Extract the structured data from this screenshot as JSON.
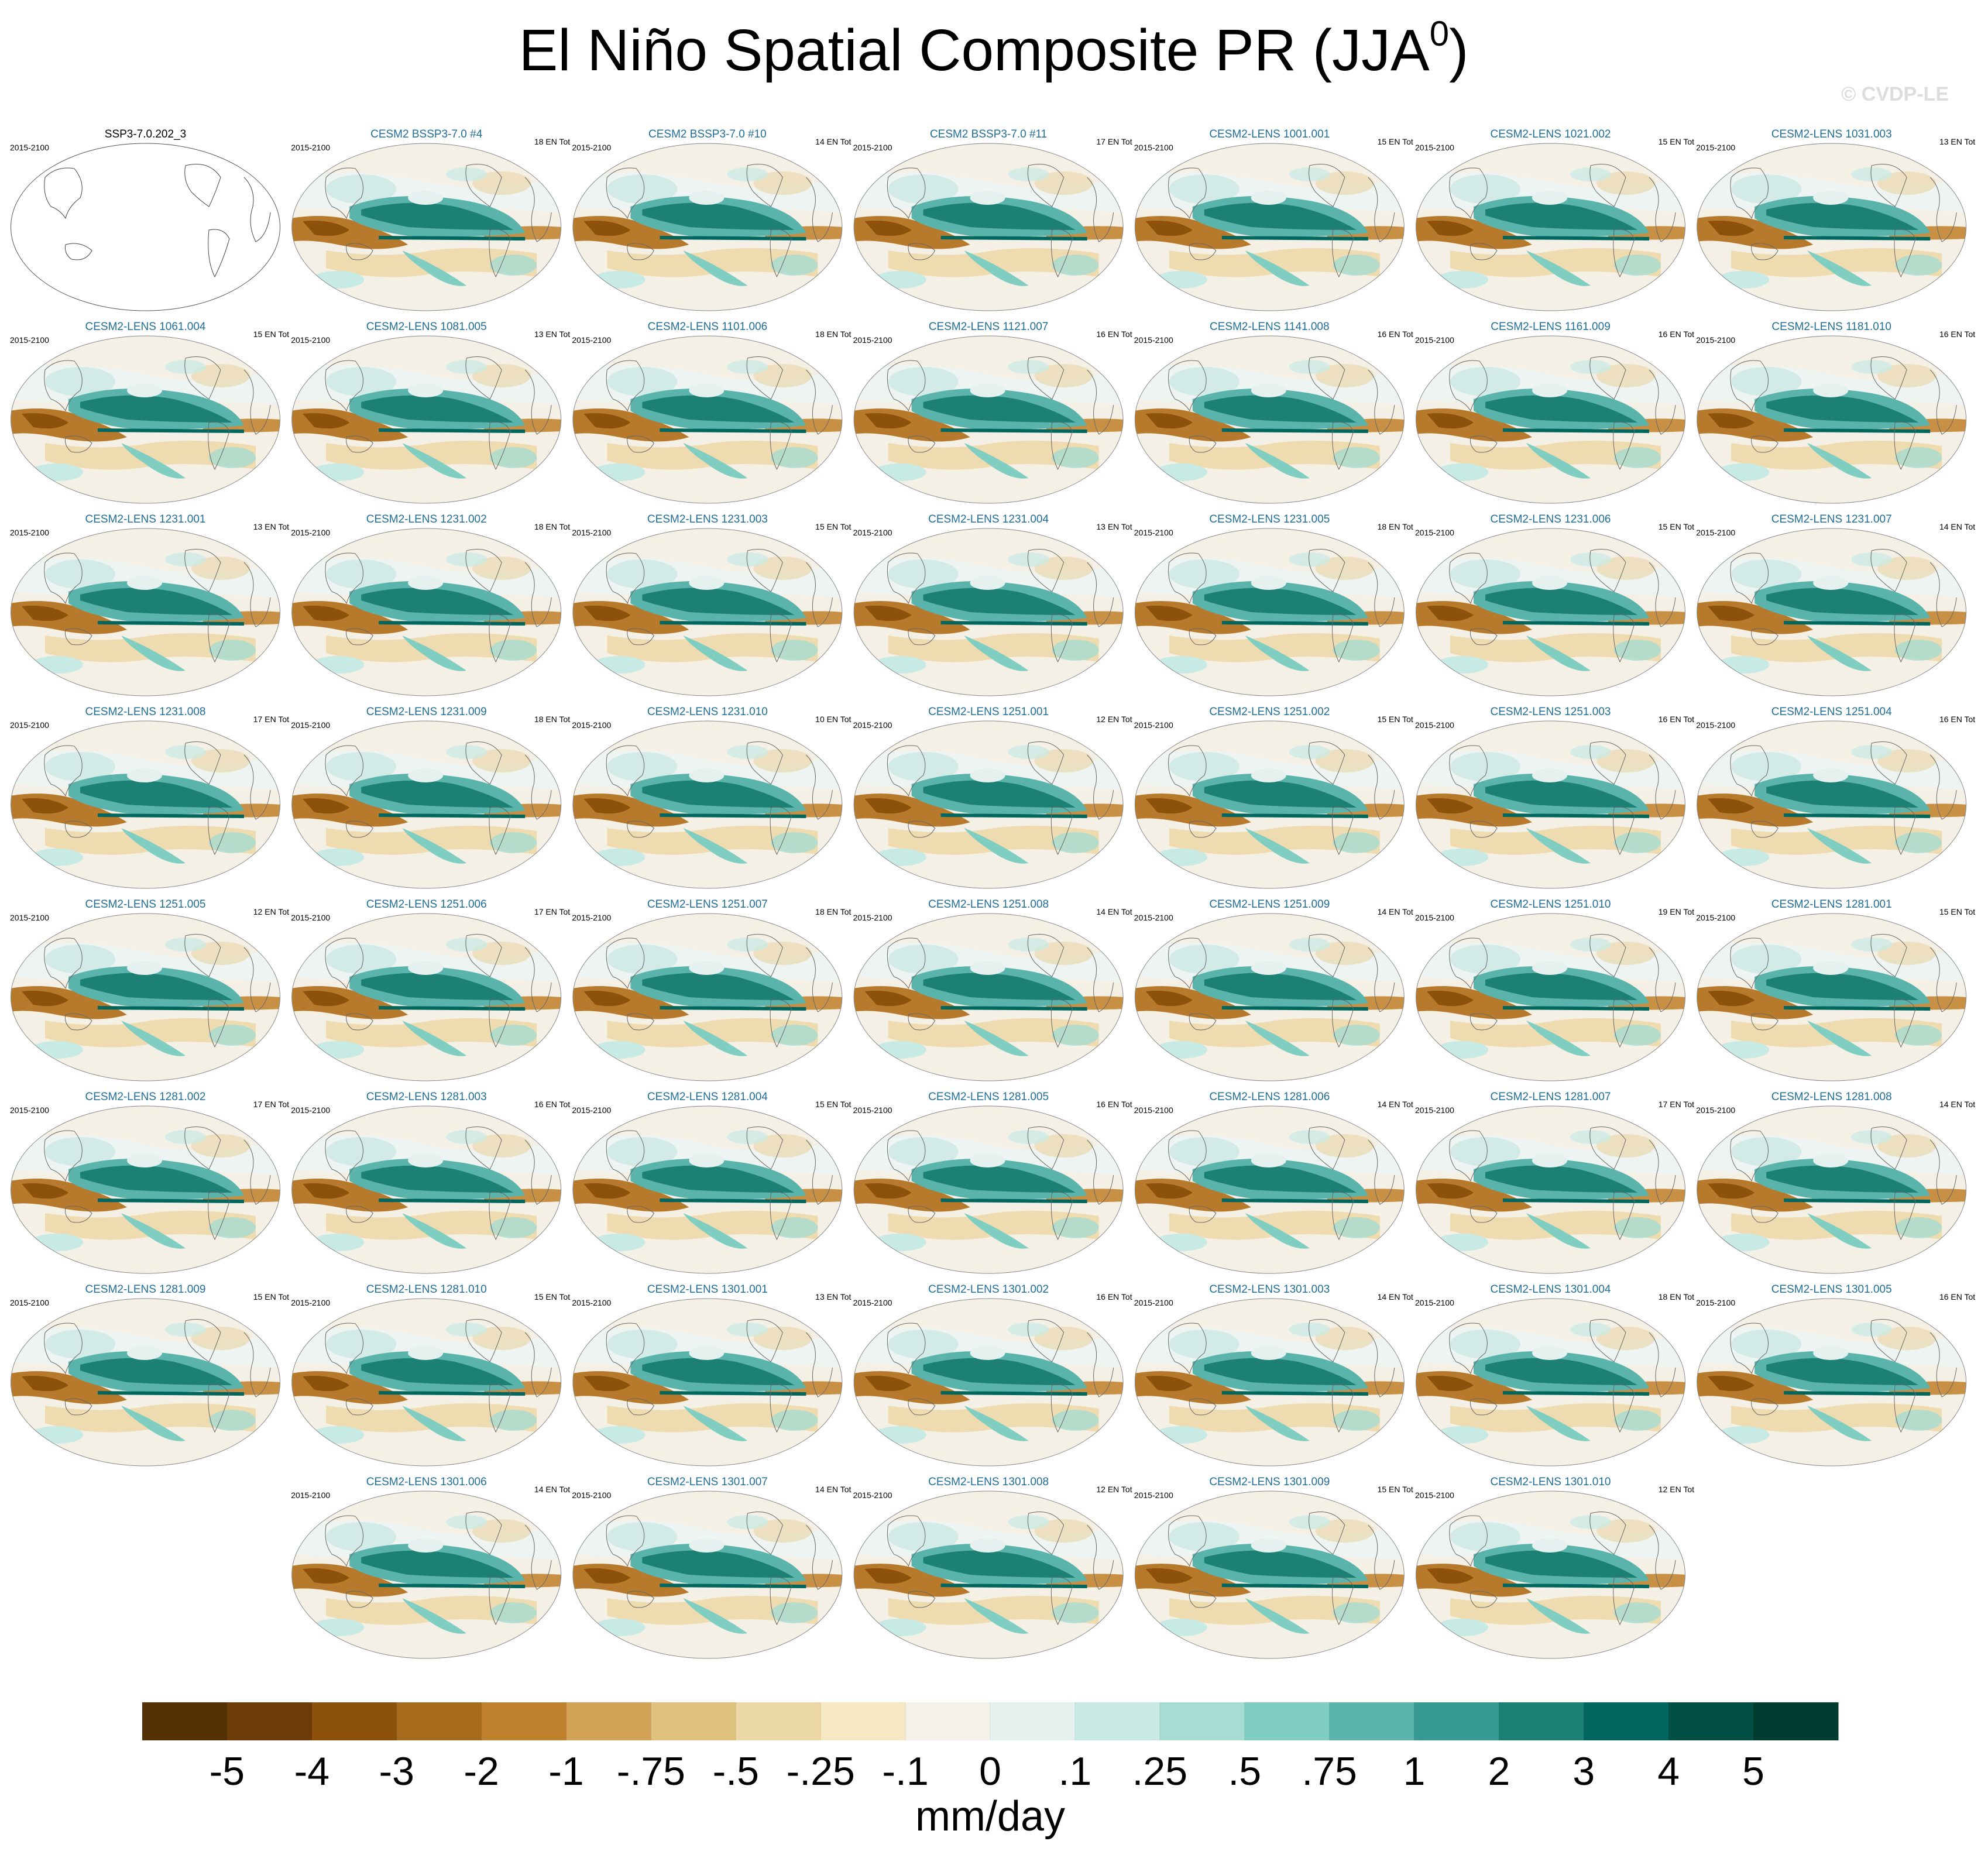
{
  "header": {
    "title": {
      "text": "El Niño Spatial Composite PR (JJA",
      "superscript": "0",
      "closing": ")"
    },
    "watermark": "© CVDP-LE"
  },
  "panels": [
    {
      "period": "2015-2100",
      "title": "SSP3-7.0.202_3"
    },
    {
      "period": "2015-2100",
      "title": "CESM2 BSSP3-7.0 #4",
      "count": "18 EN Tot"
    },
    {
      "period": "2015-2100",
      "title": "CESM2 BSSP3-7.0 #10",
      "count": "14 EN Tot"
    },
    {
      "period": "2015-2100",
      "title": "CESM2 BSSP3-7.0 #11",
      "count": "17 EN Tot"
    },
    {
      "period": "2015-2100",
      "title": "CESM2-LENS 1001.001",
      "count": "15 EN Tot"
    },
    {
      "period": "2015-2100",
      "title": "CESM2-LENS 1021.002",
      "count": "15 EN Tot"
    },
    {
      "period": "2015-2100",
      "title": "CESM2-LENS 1031.003",
      "count": "13 EN Tot"
    },
    {
      "period": "2015-2100",
      "title": "CESM2-LENS 1061.004",
      "count": "15 EN Tot"
    },
    {
      "period": "2015-2100",
      "title": "CESM2-LENS 1081.005",
      "count": "13 EN Tot"
    },
    {
      "period": "2015-2100",
      "title": "CESM2-LENS 1101.006",
      "count": "18 EN Tot"
    },
    {
      "period": "2015-2100",
      "title": "CESM2-LENS 1121.007",
      "count": "16 EN Tot"
    },
    {
      "period": "2015-2100",
      "title": "CESM2-LENS 1141.008",
      "count": "16 EN Tot"
    },
    {
      "period": "2015-2100",
      "title": "CESM2-LENS 1161.009",
      "count": "16 EN Tot"
    },
    {
      "period": "2015-2100",
      "title": "CESM2-LENS 1181.010",
      "count": "16 EN Tot"
    },
    {
      "period": "2015-2100",
      "title": "CESM2-LENS 1231.001",
      "count": "13 EN Tot"
    },
    {
      "period": "2015-2100",
      "title": "CESM2-LENS 1231.002",
      "count": "18 EN Tot"
    },
    {
      "period": "2015-2100",
      "title": "CESM2-LENS 1231.003",
      "count": "15 EN Tot"
    },
    {
      "period": "2015-2100",
      "title": "CESM2-LENS 1231.004",
      "count": "13 EN Tot"
    },
    {
      "period": "2015-2100",
      "title": "CESM2-LENS 1231.005",
      "count": "18 EN Tot"
    },
    {
      "period": "2015-2100",
      "title": "CESM2-LENS 1231.006",
      "count": "15 EN Tot"
    },
    {
      "period": "2015-2100",
      "title": "CESM2-LENS 1231.007",
      "count": "14 EN Tot"
    },
    {
      "period": "2015-2100",
      "title": "CESM2-LENS 1231.008",
      "count": "17 EN Tot"
    },
    {
      "period": "2015-2100",
      "title": "CESM2-LENS 1231.009",
      "count": "18 EN Tot"
    },
    {
      "period": "2015-2100",
      "title": "CESM2-LENS 1231.010",
      "count": "10 EN Tot"
    },
    {
      "period": "2015-2100",
      "title": "CESM2-LENS 1251.001",
      "count": "12 EN Tot"
    },
    {
      "period": "2015-2100",
      "title": "CESM2-LENS 1251.002",
      "count": "15 EN Tot"
    },
    {
      "period": "2015-2100",
      "title": "CESM2-LENS 1251.003",
      "count": "16 EN Tot"
    },
    {
      "period": "2015-2100",
      "title": "CESM2-LENS 1251.004",
      "count": "16 EN Tot"
    },
    {
      "period": "2015-2100",
      "title": "CESM2-LENS 1251.005",
      "count": "12 EN Tot"
    },
    {
      "period": "2015-2100",
      "title": "CESM2-LENS 1251.006",
      "count": "17 EN Tot"
    },
    {
      "period": "2015-2100",
      "title": "CESM2-LENS 1251.007",
      "count": "18 EN Tot"
    },
    {
      "period": "2015-2100",
      "title": "CESM2-LENS 1251.008",
      "count": "14 EN Tot"
    },
    {
      "period": "2015-2100",
      "title": "CESM2-LENS 1251.009",
      "count": "14 EN Tot"
    },
    {
      "period": "2015-2100",
      "title": "CESM2-LENS 1251.010",
      "count": "19 EN Tot"
    },
    {
      "period": "2015-2100",
      "title": "CESM2-LENS 1281.001",
      "count": "15 EN Tot"
    },
    {
      "period": "2015-2100",
      "title": "CESM2-LENS 1281.002",
      "count": "17 EN Tot"
    },
    {
      "period": "2015-2100",
      "title": "CESM2-LENS 1281.003",
      "count": "16 EN Tot"
    },
    {
      "period": "2015-2100",
      "title": "CESM2-LENS 1281.004",
      "count": "15 EN Tot"
    },
    {
      "period": "2015-2100",
      "title": "CESM2-LENS 1281.005",
      "count": "16 EN Tot"
    },
    {
      "period": "2015-2100",
      "title": "CESM2-LENS 1281.006",
      "count": "14 EN Tot"
    },
    {
      "period": "2015-2100",
      "title": "CESM2-LENS 1281.007",
      "count": "17 EN Tot"
    },
    {
      "period": "2015-2100",
      "title": "CESM2-LENS 1281.008",
      "count": "14 EN Tot"
    },
    {
      "period": "2015-2100",
      "title": "CESM2-LENS 1281.009",
      "count": "15 EN Tot"
    },
    {
      "period": "2015-2100",
      "title": "CESM2-LENS 1281.010",
      "count": "15 EN Tot"
    },
    {
      "period": "2015-2100",
      "title": "CESM2-LENS 1301.001",
      "count": "13 EN Tot"
    },
    {
      "period": "2015-2100",
      "title": "CESM2-LENS 1301.002",
      "count": "16 EN Tot"
    },
    {
      "period": "2015-2100",
      "title": "CESM2-LENS 1301.003",
      "count": "14 EN Tot"
    },
    {
      "period": "2015-2100",
      "title": "CESM2-LENS 1301.004",
      "count": "18 EN Tot"
    },
    {
      "period": "2015-2100",
      "title": "CESM2-LENS 1301.005",
      "count": "16 EN Tot"
    },
    {
      "period": "2015-2100",
      "title": "CESM2-LENS 1301.006",
      "count": "14 EN Tot"
    },
    {
      "period": "2015-2100",
      "title": "CESM2-LENS 1301.007",
      "count": "14 EN Tot"
    },
    {
      "period": "2015-2100",
      "title": "CESM2-LENS 1301.008",
      "count": "12 EN Tot"
    },
    {
      "period": "2015-2100",
      "title": "CESM2-LENS 1301.009",
      "count": "15 EN Tot"
    },
    {
      "period": "2015-2100",
      "title": "CESM2-LENS 1301.010",
      "count": "12 EN Tot"
    }
  ],
  "colorbar": {
    "colors": [
      "#543005",
      "#6e3c09",
      "#8c510a",
      "#a66a1d",
      "#bf812d",
      "#d2a257",
      "#dfc27d",
      "#ecd7a6",
      "#f6e8c3",
      "#f4f1e9",
      "#e4f1ee",
      "#c7eae5",
      "#a6dcd2",
      "#80cdc1",
      "#5ab4ac",
      "#359a90",
      "#1c8075",
      "#01665e",
      "#014f45",
      "#003c30"
    ],
    "ticks": [
      -5,
      -4,
      -3,
      -2,
      -1,
      {
        "value": -0.75,
        "label": "-.75"
      },
      {
        "value": -0.5,
        "label": "-.5"
      },
      {
        "value": -0.25,
        "label": "-.25"
      },
      {
        "value": -0.1,
        "label": "-.1"
      },
      0,
      {
        "value": 0.1,
        "label": ".1"
      },
      {
        "value": 0.25,
        "label": ".25"
      },
      {
        "value": 0.5,
        "label": ".5"
      },
      {
        "value": 0.75,
        "label": ".75"
      },
      1,
      2,
      3,
      4,
      5
    ],
    "units": "mm/day"
  }
}
